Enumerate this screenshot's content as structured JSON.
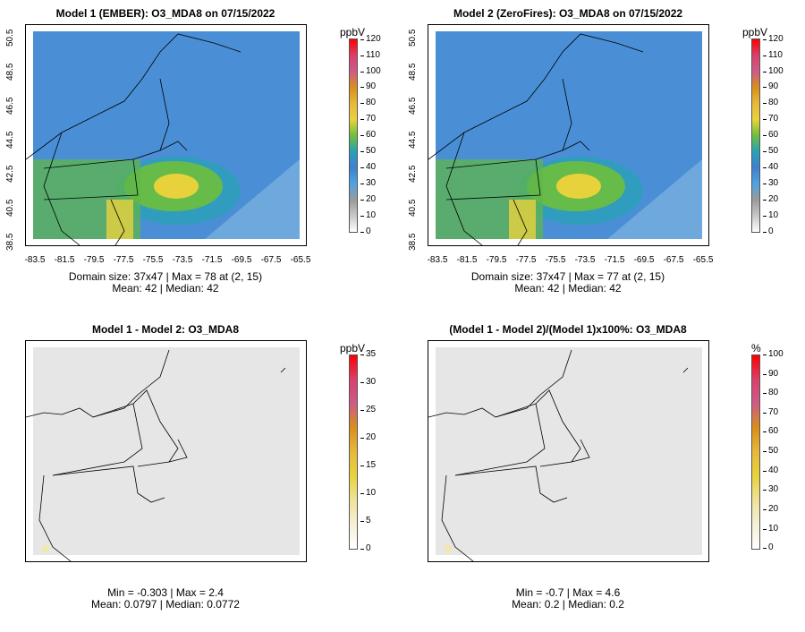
{
  "colorbar_ticks": {
    "ppbv_120": [
      "120",
      "110",
      "100",
      "90",
      "80",
      "70",
      "60",
      "50",
      "40",
      "30",
      "20",
      "10",
      "0"
    ],
    "ppbv_35": [
      "35",
      "30",
      "25",
      "20",
      "15",
      "10",
      "5",
      "0"
    ],
    "pct_100": [
      "100",
      "90",
      "80",
      "70",
      "60",
      "50",
      "40",
      "30",
      "20",
      "10",
      "0"
    ]
  },
  "axis": {
    "x_ticks": [
      "-83.5",
      "-81.5",
      "-79.5",
      "-77.5",
      "-75.5",
      "-73.5",
      "-71.5",
      "-69.5",
      "-67.5",
      "-65.5"
    ],
    "y_ticks": [
      "38.5",
      "40.5",
      "42.5",
      "44.5",
      "46.5",
      "48.5",
      "50.5"
    ]
  },
  "panels": [
    {
      "title": "Model 1 (EMBER): O3_MDA8 on 07/15/2022",
      "unit": "ppbV",
      "stats_line1": "Domain size: 37x47 | Max = 78 at (2, 15)",
      "stats_line2": "Mean: 42 |  Median: 42"
    },
    {
      "title": "Model 2 (ZeroFires): O3_MDA8 on 07/15/2022",
      "unit": "ppbV",
      "stats_line1": "Domain size: 37x47 | Max = 77 at (2, 15)",
      "stats_line2": "Mean: 42 |  Median: 42"
    },
    {
      "title": "Model 1 - Model 2: O3_MDA8",
      "unit": "ppbV",
      "stats_line1": "Min = -0.303 | Max = 2.4",
      "stats_line2": "Mean: 0.0797 |  Median: 0.0772"
    },
    {
      "title": "(Model 1 - Model 2)/(Model 1)x100%: O3_MDA8",
      "unit": "%",
      "stats_line1": "Min = -0.7 | Max = 4.6",
      "stats_line2": "Mean: 0.2 |  Median: 0.2"
    }
  ],
  "colors": {
    "ocean": "#6fa8dc",
    "land_low": "#3f7fd0",
    "land_mid": "#2aa0b8",
    "plume_green": "#6ebf3c",
    "plume_yellow": "#e8d23c",
    "diff_bg": "#e6e6e6"
  }
}
